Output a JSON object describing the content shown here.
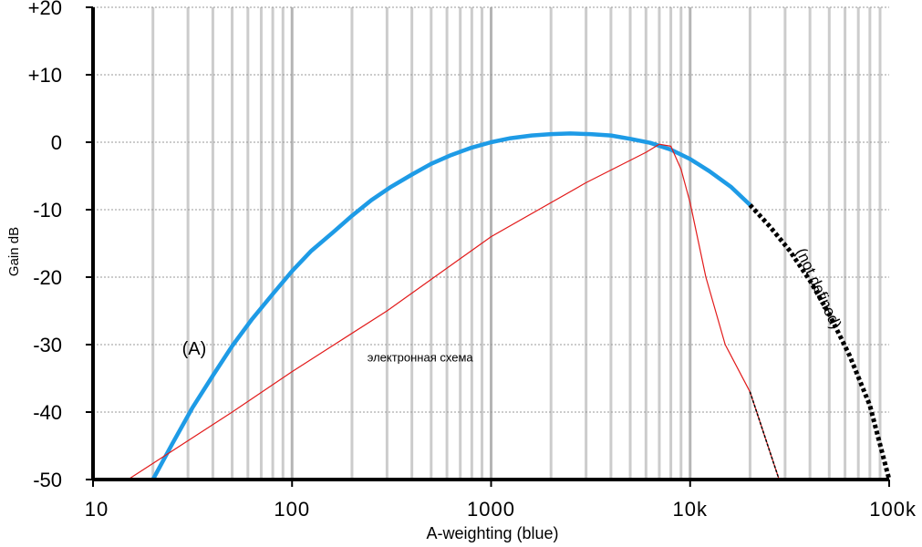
{
  "chart_data": {
    "type": "line",
    "xscale": "log",
    "xlim": [
      10,
      100000
    ],
    "ylim": [
      -50,
      20
    ],
    "xlabel": "A-weighting (blue)",
    "ylabel": "Gain dB",
    "x_ticks": [
      {
        "value": 10,
        "label": "10"
      },
      {
        "value": 100,
        "label": "100"
      },
      {
        "value": 1000,
        "label": "1000"
      },
      {
        "value": 10000,
        "label": "10k"
      },
      {
        "value": 100000,
        "label": "100k"
      }
    ],
    "y_ticks": [
      {
        "value": 20,
        "label": "+20"
      },
      {
        "value": 10,
        "label": "+10"
      },
      {
        "value": 0,
        "label": "0"
      },
      {
        "value": -10,
        "label": "-10"
      },
      {
        "value": -20,
        "label": "-20"
      },
      {
        "value": -30,
        "label": "-30"
      },
      {
        "value": -40,
        "label": "-40"
      },
      {
        "value": -50,
        "label": "-50"
      }
    ],
    "grid": true,
    "series": [
      {
        "key": "a_weighting",
        "color": "#1e9be6",
        "style": "solid",
        "points": [
          [
            20,
            -50
          ],
          [
            25,
            -44.7
          ],
          [
            31.5,
            -39.4
          ],
          [
            40,
            -34.6
          ],
          [
            50,
            -30.2
          ],
          [
            63,
            -26.2
          ],
          [
            80,
            -22.5
          ],
          [
            100,
            -19.1
          ],
          [
            125,
            -16.1
          ],
          [
            160,
            -13.4
          ],
          [
            200,
            -10.9
          ],
          [
            250,
            -8.6
          ],
          [
            315,
            -6.6
          ],
          [
            400,
            -4.8
          ],
          [
            500,
            -3.2
          ],
          [
            630,
            -1.9
          ],
          [
            800,
            -0.8
          ],
          [
            1000,
            0
          ],
          [
            1250,
            0.6
          ],
          [
            1600,
            1.0
          ],
          [
            2000,
            1.2
          ],
          [
            2500,
            1.3
          ],
          [
            3150,
            1.2
          ],
          [
            4000,
            1.0
          ],
          [
            5000,
            0.5
          ],
          [
            6300,
            -0.1
          ],
          [
            8000,
            -1.1
          ],
          [
            10000,
            -2.5
          ],
          [
            12500,
            -4.3
          ],
          [
            16000,
            -6.6
          ],
          [
            20000,
            -9.3
          ]
        ]
      },
      {
        "key": "a_weighting_undefined",
        "color": "#000000",
        "style": "dotted",
        "points": [
          [
            20000,
            -9.3
          ],
          [
            25000,
            -12.4
          ],
          [
            31500,
            -16.0
          ],
          [
            40000,
            -20.5
          ],
          [
            50000,
            -25.5
          ],
          [
            63000,
            -31.5
          ],
          [
            80000,
            -39.0
          ],
          [
            100000,
            -50
          ]
        ]
      },
      {
        "key": "circuit",
        "color": "#e21a1a",
        "style": "solid",
        "points": [
          [
            15,
            -50
          ],
          [
            50,
            -40
          ],
          [
            100,
            -34
          ],
          [
            300,
            -25
          ],
          [
            1000,
            -14
          ],
          [
            3000,
            -6
          ],
          [
            6000,
            -1.5
          ],
          [
            7000,
            -0.3
          ],
          [
            8000,
            -0.6
          ],
          [
            9000,
            -4
          ],
          [
            10000,
            -9
          ],
          [
            12000,
            -20
          ],
          [
            15000,
            -30
          ],
          [
            20000,
            -37
          ],
          [
            28000,
            -50
          ]
        ]
      },
      {
        "key": "circuit_extension",
        "color": "#000000",
        "style": "dashed",
        "points": [
          [
            20000,
            -37
          ],
          [
            28000,
            -50
          ]
        ]
      }
    ],
    "annotations": [
      {
        "text": "(A)",
        "x": 28,
        "y": -31.5
      },
      {
        "text": "электронная схема",
        "x": 440,
        "y": -32.5
      },
      {
        "text": "(not defined)",
        "x": 42000,
        "y": -22,
        "rotate": 65
      }
    ]
  }
}
